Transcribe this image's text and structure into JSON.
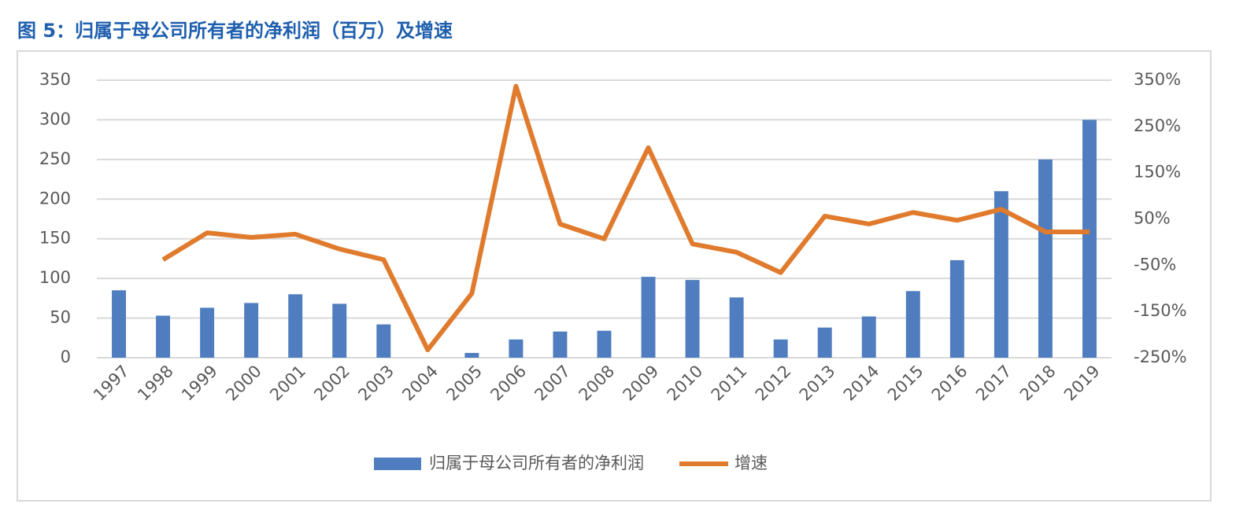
{
  "chart_data": {
    "type": "combo",
    "title": "图 5：归属于母公司所有者的净利润（百万）及增速",
    "categories": [
      "1997",
      "1998",
      "1999",
      "2000",
      "2001",
      "2002",
      "2003",
      "2004",
      "2005",
      "2006",
      "2007",
      "2008",
      "2009",
      "2010",
      "2011",
      "2012",
      "2013",
      "2014",
      "2015",
      "2016",
      "2017",
      "2018",
      "2019"
    ],
    "series": [
      {
        "name": "归属于母公司所有者的净利润",
        "type": "bar",
        "color": "#4f7dbf",
        "values": [
          85,
          53,
          63,
          69,
          80,
          68,
          42,
          0,
          6,
          23,
          33,
          34,
          102,
          98,
          76,
          23,
          38,
          52,
          84,
          123,
          210,
          250,
          300
        ]
      },
      {
        "name": "增速",
        "type": "line",
        "axis": "y2",
        "color": "#e07b2e",
        "values": [
          null,
          -38,
          20,
          10,
          17,
          -15,
          -38,
          -233,
          -111,
          337,
          39,
          7,
          204,
          -4,
          -22,
          -66,
          56,
          39,
          64,
          47,
          71,
          22,
          22
        ]
      }
    ],
    "ylim": [
      0,
      350
    ],
    "yticks": [
      0,
      50,
      100,
      150,
      200,
      250,
      300,
      350
    ],
    "y2lim": [
      -250,
      350
    ],
    "y2ticks": [
      {
        "value": -250,
        "label": "-250%"
      },
      {
        "value": -150,
        "label": "-150%"
      },
      {
        "value": -50,
        "label": "-50%"
      },
      {
        "value": 50,
        "label": "50%"
      },
      {
        "value": 150,
        "label": "150%"
      },
      {
        "value": 250,
        "label": "250%"
      },
      {
        "value": 350,
        "label": "350%"
      }
    ],
    "grid": true,
    "legend": "bottom"
  }
}
